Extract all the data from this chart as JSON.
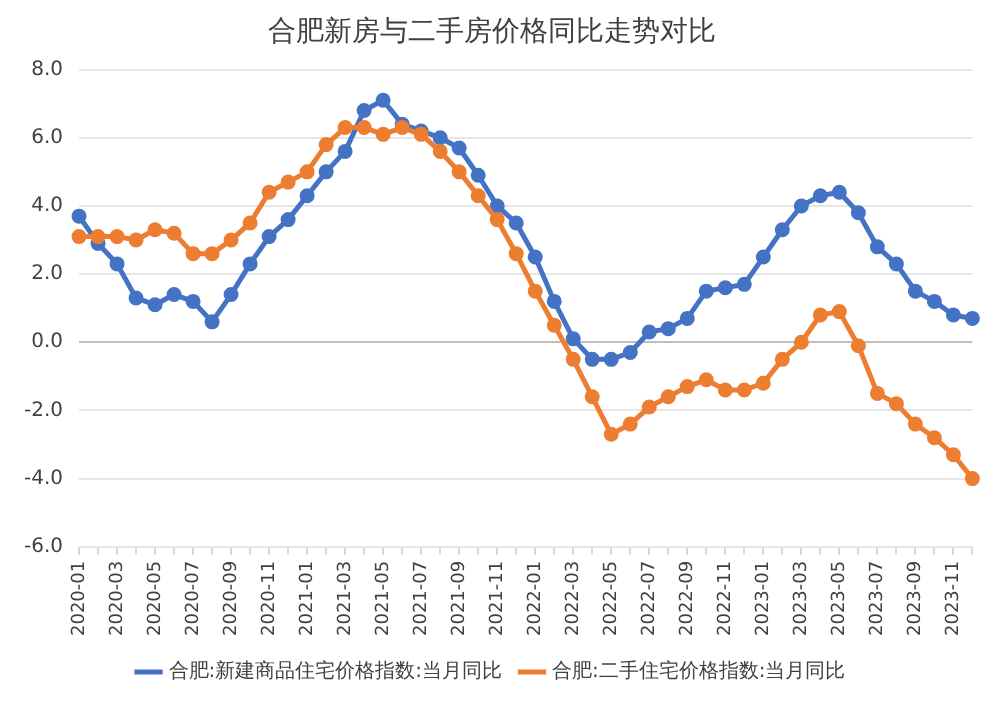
{
  "chart_data": {
    "type": "line",
    "title": "合肥新房与二手房价格同比走势对比",
    "categories": [
      "2020-01",
      null,
      "2020-03",
      null,
      "2020-05",
      null,
      "2020-07",
      null,
      "2020-09",
      null,
      "2020-11",
      null,
      "2021-01",
      null,
      "2021-03",
      null,
      "2021-05",
      null,
      "2021-07",
      null,
      "2021-09",
      null,
      "2021-11",
      null,
      "2022-01",
      null,
      "2022-03",
      null,
      "2022-05",
      null,
      "2022-07",
      null,
      "2022-09",
      null,
      "2022-11",
      null,
      "2023-01",
      null,
      "2023-03",
      null,
      "2023-05",
      null,
      "2023-07",
      null,
      "2023-09",
      null,
      "2023-11",
      null
    ],
    "series": [
      {
        "name": "合肥:新建商品住宅价格指数:当月同比",
        "color": "#4472c4",
        "values": [
          3.7,
          2.9,
          2.3,
          1.3,
          1.1,
          1.4,
          1.2,
          0.6,
          1.4,
          2.3,
          3.1,
          3.6,
          4.3,
          5.0,
          5.6,
          6.8,
          7.1,
          6.4,
          6.2,
          6.0,
          5.7,
          4.9,
          4.0,
          3.5,
          2.5,
          1.2,
          0.1,
          -0.5,
          -0.5,
          -0.3,
          0.3,
          0.4,
          0.7,
          1.5,
          1.6,
          1.7,
          2.5,
          3.3,
          4.0,
          4.3,
          4.4,
          3.8,
          2.8,
          2.3,
          1.5,
          1.2,
          0.8,
          0.7
        ]
      },
      {
        "name": "合肥:二手住宅价格指数:当月同比",
        "color": "#ed7d31",
        "values": [
          3.1,
          3.1,
          3.1,
          3.0,
          3.3,
          3.2,
          2.6,
          2.6,
          3.0,
          3.5,
          4.4,
          4.7,
          5.0,
          5.8,
          6.3,
          6.3,
          6.1,
          6.3,
          6.1,
          5.6,
          5.0,
          4.3,
          3.6,
          2.6,
          1.5,
          0.5,
          -0.5,
          -1.6,
          -2.7,
          -2.4,
          -1.9,
          -1.6,
          -1.3,
          -1.1,
          -1.4,
          -1.4,
          -1.2,
          -0.5,
          0.0,
          0.8,
          0.9,
          -0.1,
          -1.5,
          -1.8,
          -2.4,
          -2.8,
          -3.3,
          -4.0
        ]
      }
    ],
    "ylim": [
      -6,
      8
    ],
    "yticks": [
      {
        "value": -6,
        "label": "-6.0"
      },
      {
        "value": -4,
        "label": "-4.0"
      },
      {
        "value": -2,
        "label": "-2.0"
      },
      {
        "value": 0,
        "label": "0.0"
      },
      {
        "value": 2,
        "label": "2.0"
      },
      {
        "value": 4,
        "label": "4.0"
      },
      {
        "value": 6,
        "label": "6.0"
      },
      {
        "value": 8,
        "label": "8.0"
      }
    ],
    "grid": "y",
    "legend": "bottom",
    "marker": "circle",
    "line_style": "solid"
  }
}
